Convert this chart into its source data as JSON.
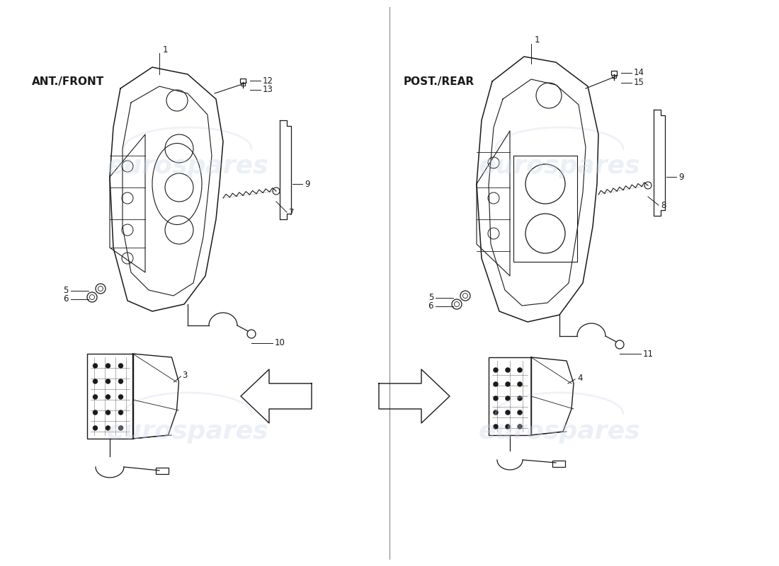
{
  "bg_color": "#ffffff",
  "line_color": "#1a1a1a",
  "watermark_color": "#c8d4e8",
  "left_title": "ANT./FRONT",
  "right_title": "POST./REAR",
  "title_fontsize": 11,
  "title_fontweight": "bold",
  "watermark_text": "eurospares",
  "watermark_fontsize": 26,
  "figsize": [
    11.0,
    8.0
  ],
  "dpi": 100
}
